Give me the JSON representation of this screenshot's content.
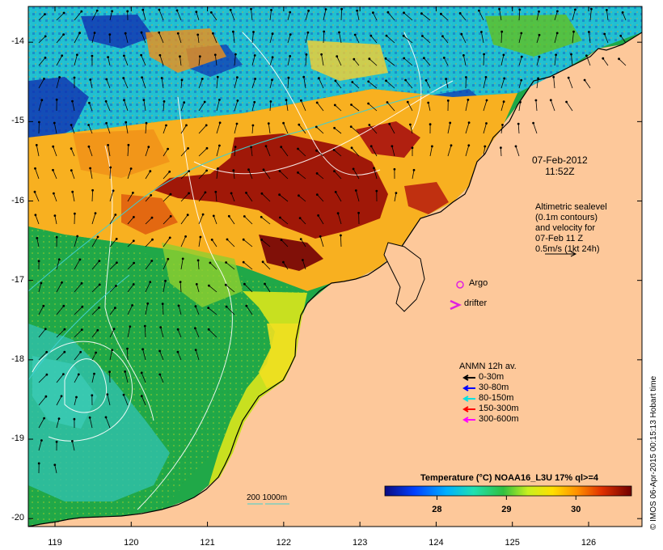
{
  "date_label": "07-Feb-2012",
  "time_label": "11:52Z",
  "altimetry": {
    "lines": [
      "Altimetric sealevel",
      "(0.1m contours)",
      "and velocity for",
      "07-Feb 11 Z",
      "0.5m/s (1kt 24h)"
    ]
  },
  "markers": {
    "argo_label": "Argo",
    "drifter_label": "drifter",
    "argo_color": "#e020e0",
    "drifter_color": "#e020e0"
  },
  "anmn_legend": {
    "title": "ANMN 12h av.",
    "entries": [
      {
        "label": "0-30m",
        "color": "#000000"
      },
      {
        "label": "30-80m",
        "color": "#0000ff"
      },
      {
        "label": "80-150m",
        "color": "#00e0e0"
      },
      {
        "label": "150-300m",
        "color": "#ff0000"
      },
      {
        "label": "300-600m",
        "color": "#ff00ff"
      }
    ]
  },
  "colorbar": {
    "title": "Temperature (°C) NOAA16_L3U 17% ql>=4",
    "ticks": [
      "28",
      "29",
      "30"
    ],
    "tick_values": [
      28,
      29,
      30
    ],
    "range": [
      27.25,
      30.8
    ]
  },
  "isobath_label": "200  1000m",
  "credit": "© IMOS 06-Apr-2015 00:15:13 Hobart time",
  "axes": {
    "lat_ticks": [
      "-14",
      "-15",
      "-16",
      "-17",
      "-18",
      "-19",
      "-20"
    ],
    "lon_ticks": [
      "119",
      "120",
      "121",
      "122",
      "123",
      "124",
      "125",
      "126"
    ],
    "lat_values": [
      -14,
      -15,
      -16,
      -17,
      -18,
      -19,
      -20
    ],
    "lon_values": [
      119,
      120,
      121,
      122,
      123,
      124,
      125,
      126
    ],
    "lat_range": [
      -13.55,
      -20.1
    ],
    "lon_range": [
      118.65,
      126.7
    ]
  },
  "colors": {
    "land": "#fdc89a",
    "frame": "#000000",
    "contour": "#ffffff",
    "isobath": "#40d0d0"
  }
}
